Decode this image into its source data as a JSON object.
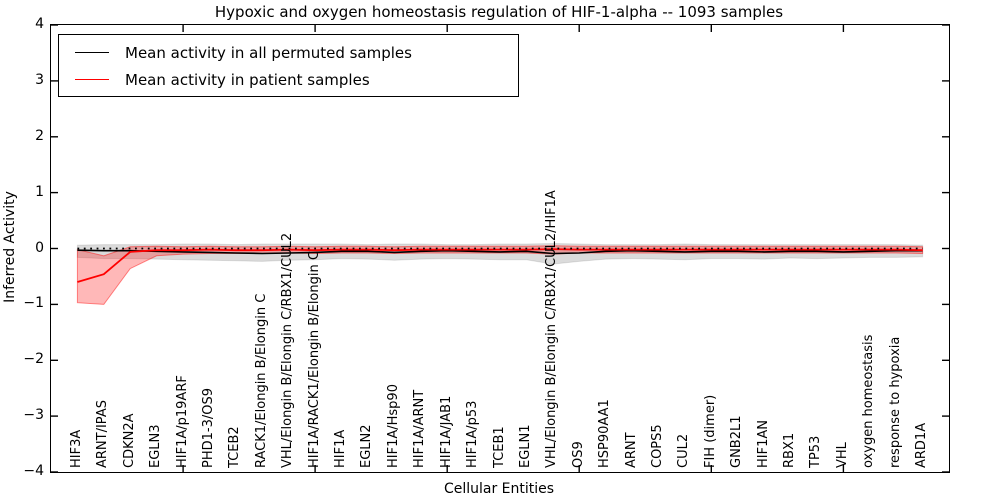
{
  "figure": {
    "title": "Hypoxic and oxygen homeostasis regulation of HIF-1-alpha -- 1093 samples",
    "xlabel": "Cellular Entities",
    "ylabel": "Inferred Activity"
  },
  "legend": {
    "items": [
      {
        "label": "Mean activity in all permuted samples",
        "color": "#000000"
      },
      {
        "label": "Mean activity in patient samples",
        "color": "#ff0000"
      }
    ]
  },
  "chart_data": {
    "type": "line",
    "title": "Hypoxic and oxygen homeostasis regulation of HIF-1-alpha -- 1093 samples",
    "xlabel": "Cellular Entities",
    "ylabel": "Inferred Activity",
    "xlim": [
      0,
      34
    ],
    "ylim": [
      -4,
      4
    ],
    "grid": false,
    "legend_position": "upper left",
    "ytick_values": [
      4,
      3,
      2,
      1,
      0,
      -1,
      -2,
      -3,
      -4
    ],
    "ytick_labels": [
      "4",
      "3",
      "2",
      "1",
      "0",
      "−1",
      "−2",
      "−3",
      "−4"
    ],
    "xtick_values": [
      5,
      10,
      15,
      20,
      25,
      30
    ],
    "categories": [
      "HIF3A",
      "ARNT/IPAS",
      "CDKN2A",
      "EGLN3",
      "HIF1A/p19ARF",
      "PHD1-3/OS9",
      "TCEB2",
      "RACK1/Elongin B/Elongin C",
      "VHL/Elongin B/Elongin C/RBX1/CUL2",
      "HIF1A/RACK1/Elongin B/Elongin C",
      "HIF1A",
      "EGLN2",
      "HIF1A/Hsp90",
      "HIF1A/ARNT",
      "HIF1A/JAB1",
      "HIF1A/p53",
      "TCEB1",
      "EGLN1",
      "VHL/Elongin B/Elongin C/RBX1/CUL2/HIF1A",
      "OS9",
      "HSP90AA1",
      "ARNT",
      "COPS5",
      "CUL2",
      "FIH (dimer)",
      "GNB2L1",
      "HIF1AN",
      "RBX1",
      "TP53",
      "VHL",
      "oxygen homeostasis",
      "response to hypoxia",
      "ARD1A"
    ],
    "zero_line": {
      "y": 0,
      "style": "dotted",
      "color": "#000000"
    },
    "series": [
      {
        "name": "Mean activity in all permuted samples",
        "color": "#000000",
        "band_color": "rgba(0,0,0,0.14)",
        "band_edge_color": "rgba(0,0,0,0.10)",
        "values": [
          -0.03,
          -0.04,
          -0.04,
          -0.05,
          -0.06,
          -0.07,
          -0.08,
          -0.09,
          -0.08,
          -0.07,
          -0.05,
          -0.05,
          -0.07,
          -0.05,
          -0.04,
          -0.05,
          -0.06,
          -0.05,
          -0.09,
          -0.08,
          -0.05,
          -0.04,
          -0.05,
          -0.06,
          -0.05,
          -0.05,
          -0.06,
          -0.05,
          -0.05,
          -0.06,
          -0.05,
          -0.04,
          -0.04
        ],
        "band_upper": [
          0.06,
          0.07,
          0.07,
          0.07,
          0.08,
          0.08,
          0.07,
          0.08,
          0.08,
          0.08,
          0.08,
          0.07,
          0.08,
          0.08,
          0.07,
          0.07,
          0.08,
          0.08,
          0.09,
          0.08,
          0.07,
          0.07,
          0.07,
          0.08,
          0.07,
          0.07,
          0.07,
          0.07,
          0.07,
          0.07,
          0.07,
          0.07,
          0.06
        ],
        "band_lower": [
          -0.16,
          -0.18,
          -0.18,
          -0.19,
          -0.2,
          -0.21,
          -0.22,
          -0.23,
          -0.21,
          -0.2,
          -0.18,
          -0.19,
          -0.21,
          -0.19,
          -0.18,
          -0.19,
          -0.2,
          -0.2,
          -0.28,
          -0.23,
          -0.19,
          -0.18,
          -0.19,
          -0.2,
          -0.18,
          -0.18,
          -0.19,
          -0.17,
          -0.18,
          -0.17,
          -0.16,
          -0.16,
          -0.15
        ]
      },
      {
        "name": "Mean activity in patient samples",
        "color": "#ff0000",
        "band_color": "rgba(255,0,0,0.28)",
        "band_edge_color": "rgba(255,0,0,0.45)",
        "values": [
          -0.6,
          -0.46,
          -0.06,
          -0.03,
          -0.03,
          -0.02,
          -0.03,
          -0.03,
          -0.02,
          -0.03,
          -0.02,
          -0.02,
          -0.03,
          -0.02,
          -0.02,
          -0.02,
          -0.02,
          -0.02,
          -0.01,
          -0.02,
          -0.02,
          -0.02,
          -0.02,
          -0.02,
          -0.02,
          -0.02,
          -0.02,
          -0.02,
          -0.02,
          -0.02,
          -0.02,
          -0.02,
          -0.03
        ],
        "band_upper": [
          -0.02,
          -0.13,
          0.03,
          0.04,
          0.03,
          0.04,
          0.03,
          0.03,
          0.04,
          0.03,
          0.04,
          0.04,
          0.03,
          0.04,
          0.04,
          0.04,
          0.04,
          0.04,
          0.05,
          0.04,
          0.04,
          0.04,
          0.04,
          0.04,
          0.04,
          0.04,
          0.04,
          0.04,
          0.04,
          0.04,
          0.04,
          0.04,
          0.03
        ],
        "band_lower": [
          -0.97,
          -1.0,
          -0.36,
          -0.13,
          -0.1,
          -0.09,
          -0.09,
          -0.09,
          -0.08,
          -0.09,
          -0.08,
          -0.08,
          -0.09,
          -0.08,
          -0.08,
          -0.08,
          -0.08,
          -0.08,
          -0.1,
          -0.08,
          -0.08,
          -0.08,
          -0.08,
          -0.08,
          -0.08,
          -0.08,
          -0.08,
          -0.08,
          -0.08,
          -0.08,
          -0.08,
          -0.08,
          -0.09
        ]
      }
    ]
  }
}
